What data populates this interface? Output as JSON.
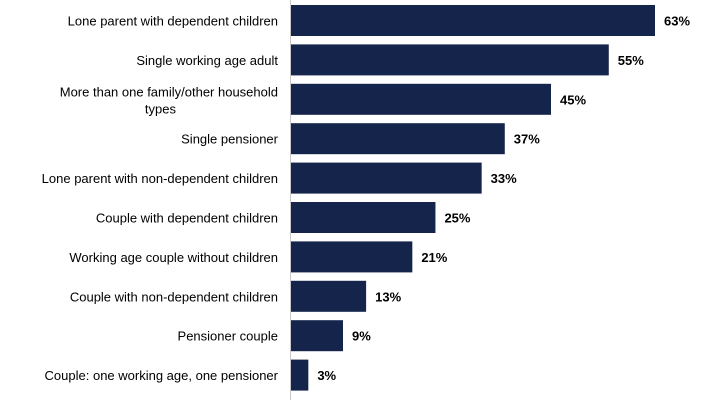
{
  "chart_data": {
    "type": "bar",
    "orientation": "horizontal",
    "title": "",
    "xlabel": "",
    "ylabel": "",
    "xlim": [
      0,
      63
    ],
    "grid": false,
    "legend": "none",
    "bar_color": "#15244a",
    "axis_color": "#c8c8c8",
    "categories": [
      "Lone parent with dependent children",
      "Single working age adult",
      "More than one family/other household types",
      "Single pensioner",
      "Lone parent with non-dependent children",
      "Couple with dependent children",
      "Working age couple without children",
      "Couple with non-dependent children",
      "Pensioner couple",
      "Couple: one working age, one pensioner"
    ],
    "values": [
      63,
      55,
      45,
      37,
      33,
      25,
      21,
      13,
      9,
      3
    ],
    "value_labels": [
      "63%",
      "55%",
      "45%",
      "37%",
      "33%",
      "25%",
      "21%",
      "13%",
      "9%",
      "3%"
    ]
  }
}
